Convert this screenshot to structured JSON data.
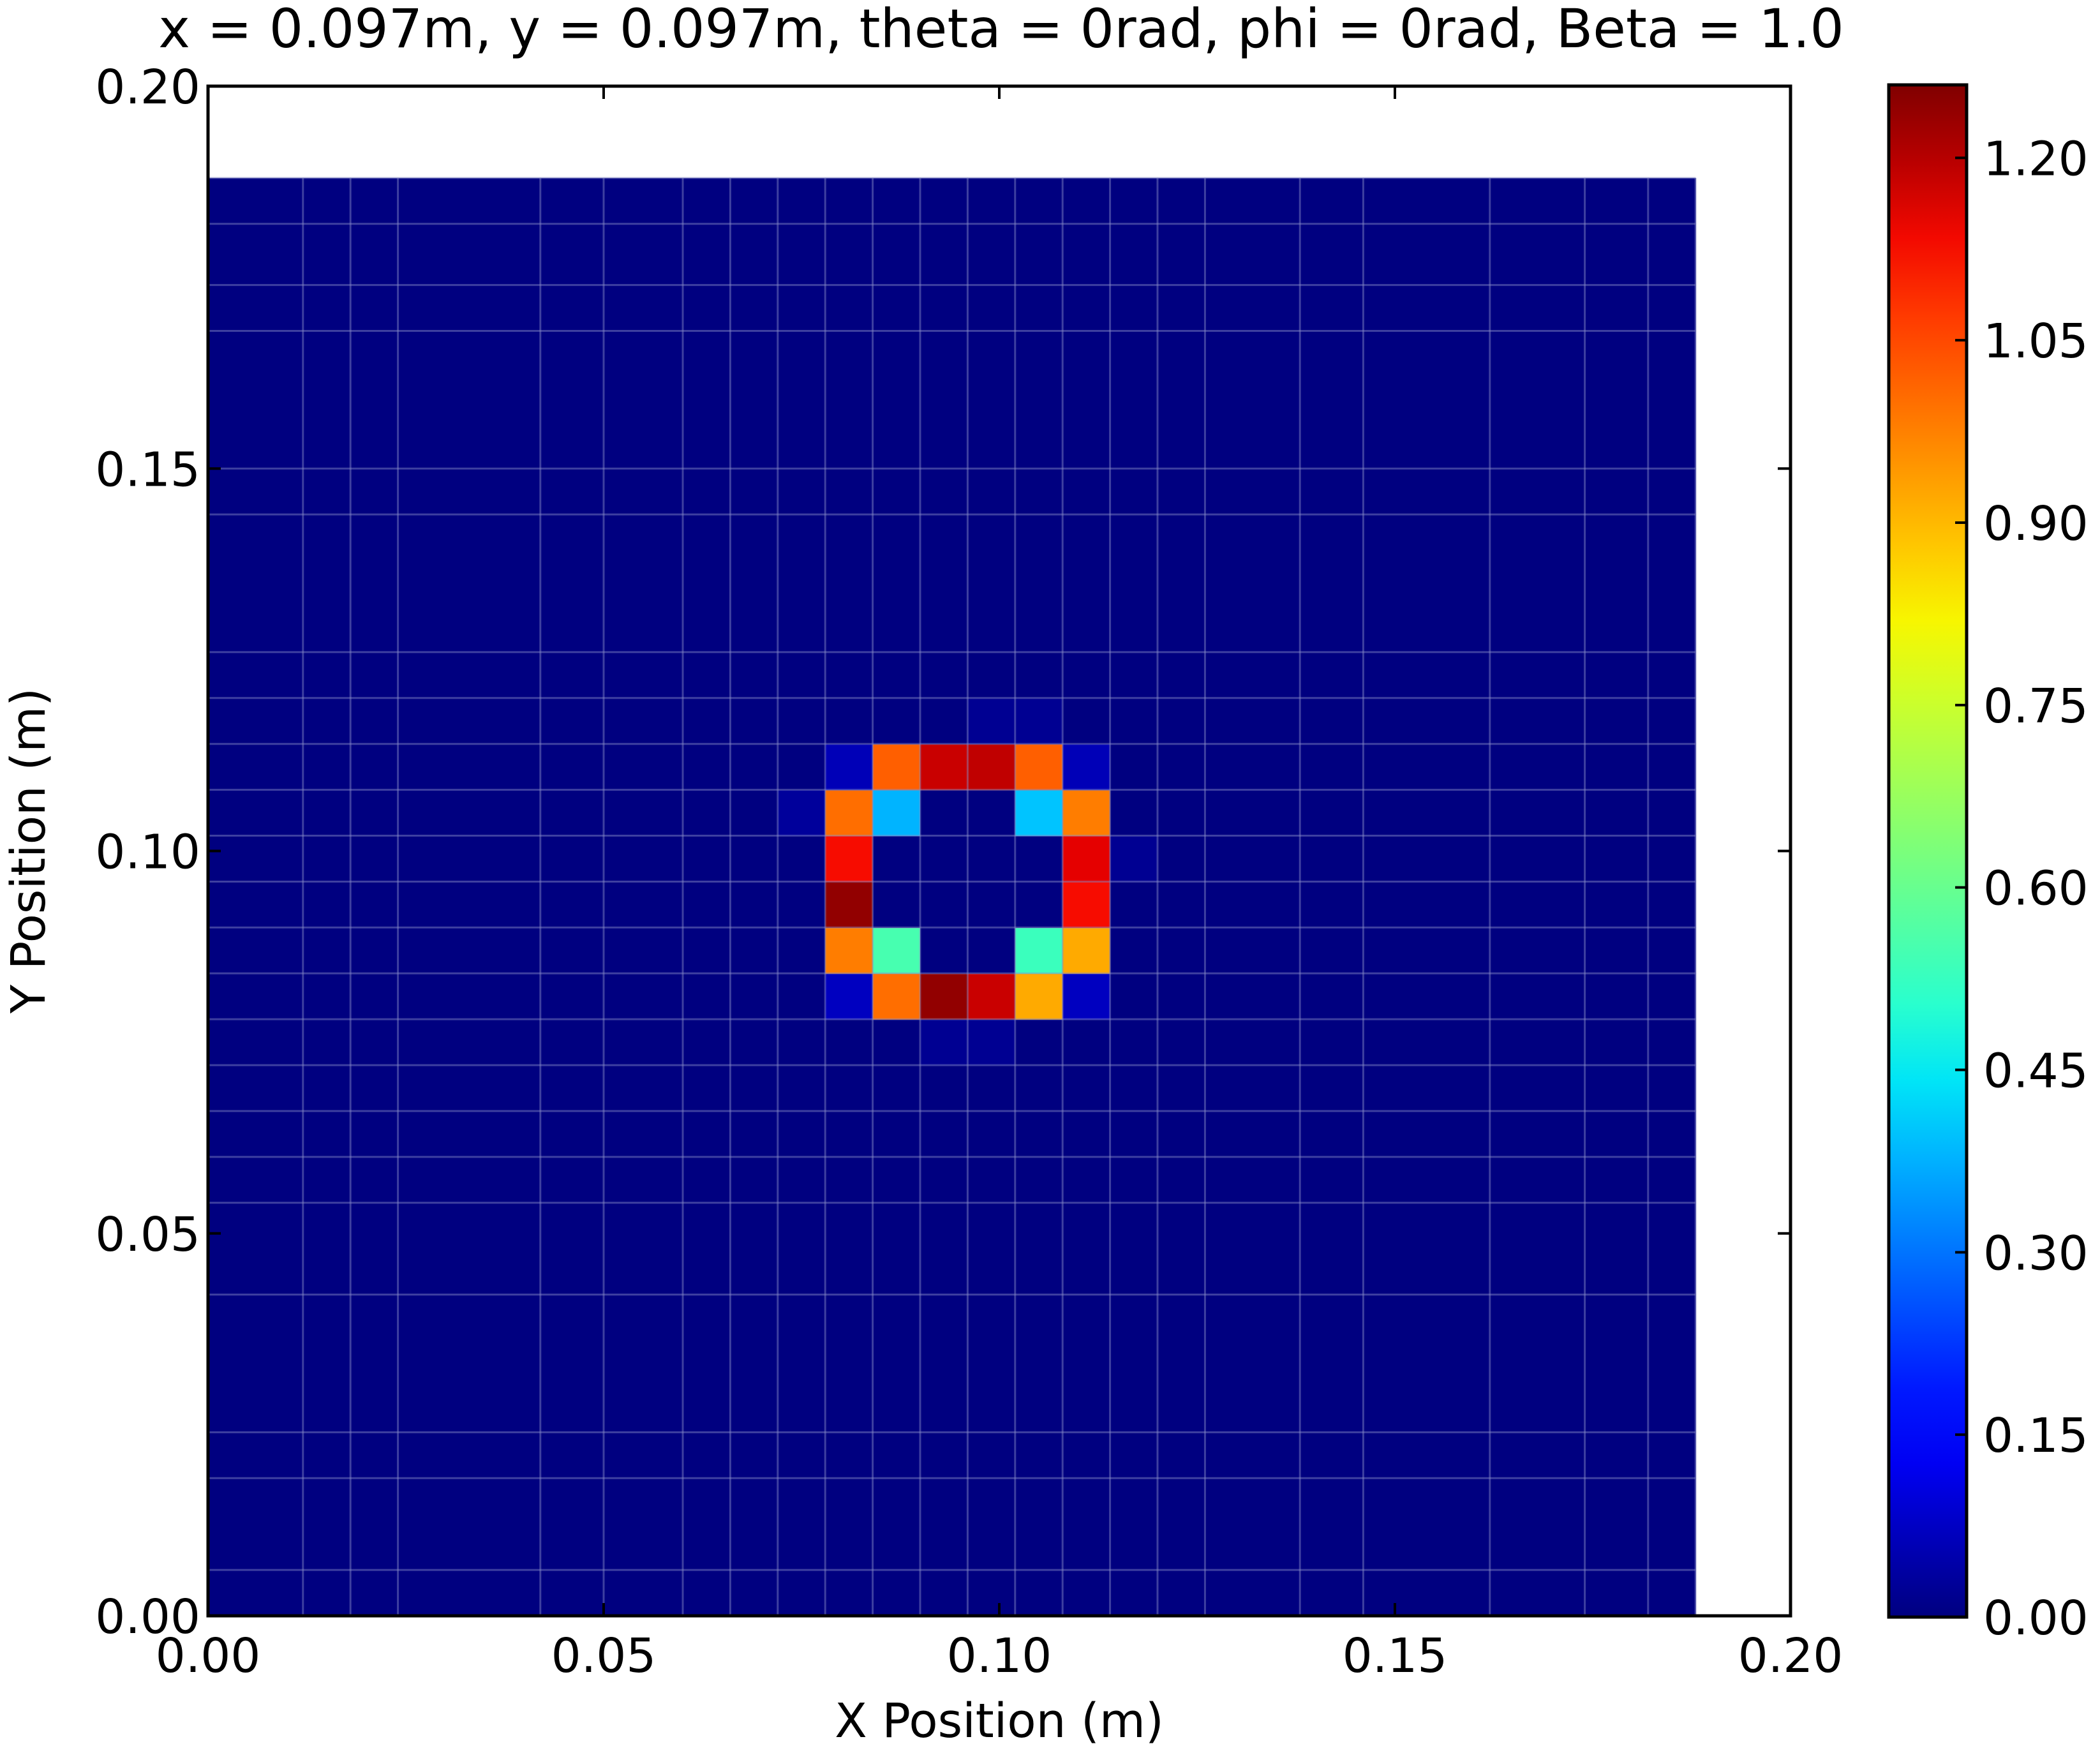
{
  "chart_data": {
    "type": "heatmap",
    "title": "x = 0.097m, y = 0.097m, theta = 0rad, phi = 0rad, Beta = 1.0",
    "xlabel": "X Position (m)",
    "ylabel": "Y Position (m)",
    "xlim": [
      0,
      0.2
    ],
    "ylim": [
      0,
      0.2
    ],
    "x_ticks": [
      "0.00",
      "0.05",
      "0.10",
      "0.15",
      "0.20"
    ],
    "y_ticks": [
      "0.00",
      "0.05",
      "0.10",
      "0.15",
      "0.20"
    ],
    "colormap": "jet",
    "colorbar": {
      "vmin": 0.0,
      "vmax": 1.26,
      "ticks": [
        "0.00",
        "0.15",
        "0.30",
        "0.45",
        "0.60",
        "0.75",
        "0.90",
        "1.05",
        "1.20"
      ]
    },
    "grid": true,
    "x_edges": [
      0.0,
      0.012,
      0.018,
      0.024,
      0.042,
      0.05,
      0.06,
      0.066,
      0.072,
      0.078,
      0.084,
      0.09,
      0.096,
      0.102,
      0.108,
      0.114,
      0.12,
      0.126,
      0.138,
      0.146,
      0.162,
      0.174,
      0.182,
      0.188
    ],
    "y_edges": [
      0.0,
      0.006,
      0.018,
      0.024,
      0.042,
      0.054,
      0.06,
      0.066,
      0.072,
      0.078,
      0.084,
      0.09,
      0.096,
      0.102,
      0.108,
      0.114,
      0.12,
      0.126,
      0.144,
      0.15,
      0.168,
      0.174,
      0.182,
      0.188
    ],
    "nonzero_cells": [
      {
        "x": 0.072,
        "y": 0.102,
        "value": 0.03
      },
      {
        "x": 0.096,
        "y": 0.114,
        "value": 0.02
      },
      {
        "x": 0.102,
        "y": 0.114,
        "value": 0.02
      },
      {
        "x": 0.078,
        "y": 0.108,
        "value": 0.06
      },
      {
        "x": 0.084,
        "y": 0.108,
        "value": 1.02
      },
      {
        "x": 0.09,
        "y": 0.108,
        "value": 1.18
      },
      {
        "x": 0.096,
        "y": 0.108,
        "value": 1.19
      },
      {
        "x": 0.102,
        "y": 0.108,
        "value": 1.02
      },
      {
        "x": 0.108,
        "y": 0.108,
        "value": 0.06
      },
      {
        "x": 0.078,
        "y": 0.102,
        "value": 1.0
      },
      {
        "x": 0.084,
        "y": 0.102,
        "value": 0.38
      },
      {
        "x": 0.102,
        "y": 0.102,
        "value": 0.4
      },
      {
        "x": 0.108,
        "y": 0.102,
        "value": 0.98
      },
      {
        "x": 0.078,
        "y": 0.096,
        "value": 1.13
      },
      {
        "x": 0.108,
        "y": 0.096,
        "value": 1.15
      },
      {
        "x": 0.114,
        "y": 0.096,
        "value": 0.02
      },
      {
        "x": 0.078,
        "y": 0.09,
        "value": 1.24
      },
      {
        "x": 0.108,
        "y": 0.09,
        "value": 1.13
      },
      {
        "x": 0.078,
        "y": 0.084,
        "value": 0.98
      },
      {
        "x": 0.084,
        "y": 0.084,
        "value": 0.55
      },
      {
        "x": 0.102,
        "y": 0.084,
        "value": 0.53
      },
      {
        "x": 0.108,
        "y": 0.084,
        "value": 0.92
      },
      {
        "x": 0.078,
        "y": 0.078,
        "value": 0.07
      },
      {
        "x": 0.084,
        "y": 0.078,
        "value": 1.0
      },
      {
        "x": 0.09,
        "y": 0.078,
        "value": 1.24
      },
      {
        "x": 0.096,
        "y": 0.078,
        "value": 1.18
      },
      {
        "x": 0.102,
        "y": 0.078,
        "value": 0.92
      },
      {
        "x": 0.108,
        "y": 0.078,
        "value": 0.07
      },
      {
        "x": 0.09,
        "y": 0.072,
        "value": 0.02
      },
      {
        "x": 0.096,
        "y": 0.072,
        "value": 0.02
      }
    ]
  }
}
